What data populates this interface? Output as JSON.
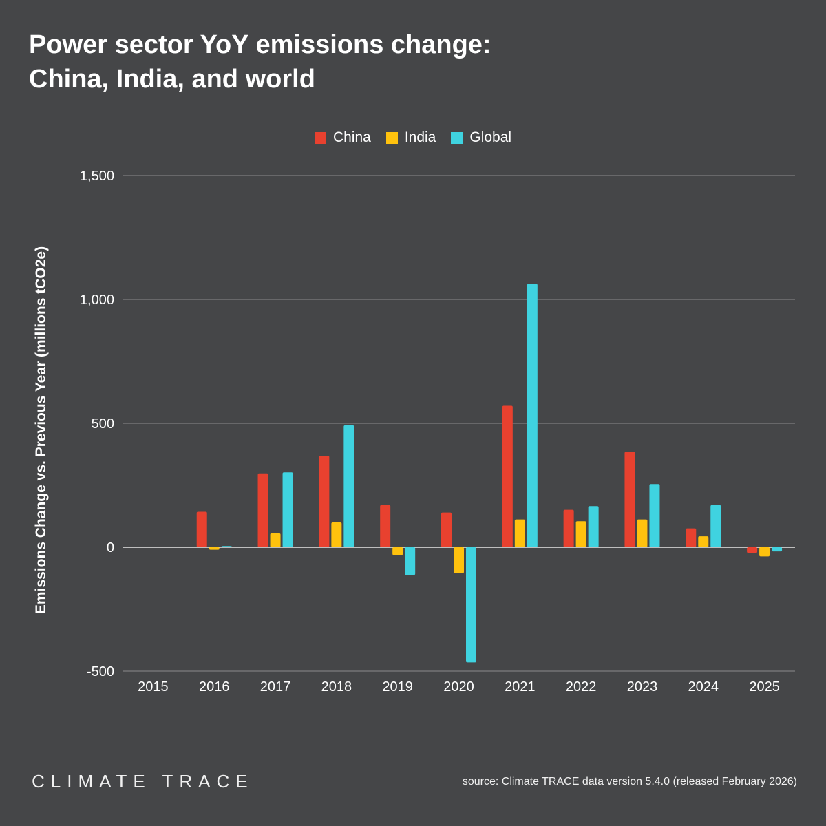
{
  "title_lines": [
    "Power sector YoY emissions change:",
    "China, India, and world"
  ],
  "legend": [
    {
      "name": "China",
      "color": "#E8412F"
    },
    {
      "name": "India",
      "color": "#FFC20E"
    },
    {
      "name": "Global",
      "color": "#3FD3E0"
    }
  ],
  "footer": {
    "logo": "CLIMATE TRACE",
    "source": "source: Climate TRACE data version 5.4.0 (released February 2026)"
  },
  "chart_data": {
    "type": "bar",
    "title": "Power sector YoY emissions change: China, India, and world",
    "ylabel": "Emissions Change vs. Previous Year (millions tCO2e)",
    "xlabel": "",
    "categories": [
      "2015",
      "2016",
      "2017",
      "2018",
      "2019",
      "2020",
      "2021",
      "2022",
      "2023",
      "2024",
      "2025"
    ],
    "ylim": [
      -500,
      1500
    ],
    "yticks": [
      -500,
      0,
      500,
      1000,
      1500
    ],
    "ytick_labels": [
      "-500",
      "0",
      "500",
      "1,000",
      "1,500"
    ],
    "grid": true,
    "legend_position": "top-center",
    "series": [
      {
        "name": "China",
        "color": "#E8412F",
        "values": [
          0,
          143,
          298,
          369,
          170,
          140,
          571,
          151,
          385,
          76,
          -23
        ]
      },
      {
        "name": "India",
        "color": "#FFC20E",
        "values": [
          0,
          -10,
          56,
          100,
          -32,
          -105,
          112,
          105,
          112,
          44,
          -37
        ]
      },
      {
        "name": "Global",
        "color": "#3FD3E0",
        "values": [
          0,
          5,
          302,
          492,
          -112,
          -465,
          1063,
          166,
          255,
          170,
          -17
        ]
      }
    ]
  }
}
